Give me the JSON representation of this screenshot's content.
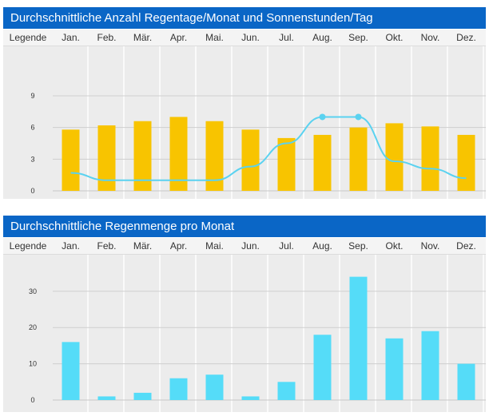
{
  "legend_label": "Legende",
  "months": [
    "Jan.",
    "Feb.",
    "Mär.",
    "Apr.",
    "Mai.",
    "Jun.",
    "Jul.",
    "Aug.",
    "Sep.",
    "Okt.",
    "Nov.",
    "Dez."
  ],
  "colors": {
    "header": "#0a66c6",
    "bar_rain_days": "#f8c400",
    "line_sun": "#5ad2f0",
    "bar_rain_amount": "#55dcf8",
    "plot_bg": "#ececec"
  },
  "chart_data": [
    {
      "type": "bar",
      "title": "Durchschnittliche Anzahl Regentage/Monat und Sonnenstunden/Tag",
      "categories": [
        "Jan.",
        "Feb.",
        "Mär.",
        "Apr.",
        "Mai.",
        "Jun.",
        "Jul.",
        "Aug.",
        "Sep.",
        "Okt.",
        "Nov.",
        "Dez."
      ],
      "yticks": [
        0,
        3,
        6,
        9
      ],
      "ylim": [
        0,
        11.8
      ],
      "grid": true,
      "series": [
        {
          "type": "bar",
          "values": [
            5.8,
            6.2,
            6.6,
            7.0,
            6.6,
            5.8,
            5.0,
            5.3,
            6.0,
            6.4,
            6.1,
            5.3
          ]
        },
        {
          "type": "line",
          "values": [
            1.7,
            1.0,
            1.0,
            1.0,
            1.0,
            2.3,
            4.5,
            7.0,
            7.0,
            2.8,
            2.1,
            1.2
          ],
          "markers_at": [
            "Aug.",
            "Sep."
          ]
        }
      ]
    },
    {
      "type": "bar",
      "title": "Durchschnittliche Regenmenge pro Monat",
      "categories": [
        "Jan.",
        "Feb.",
        "Mär.",
        "Apr.",
        "Mai.",
        "Jun.",
        "Jul.",
        "Aug.",
        "Sep.",
        "Okt.",
        "Nov.",
        "Dez."
      ],
      "yticks": [
        0,
        10,
        20,
        30
      ],
      "ylim": [
        0,
        37
      ],
      "grid": true,
      "series": [
        {
          "type": "bar",
          "values": [
            16,
            1,
            2,
            6,
            7,
            1,
            5,
            18,
            34,
            17,
            19,
            10
          ]
        }
      ]
    }
  ]
}
